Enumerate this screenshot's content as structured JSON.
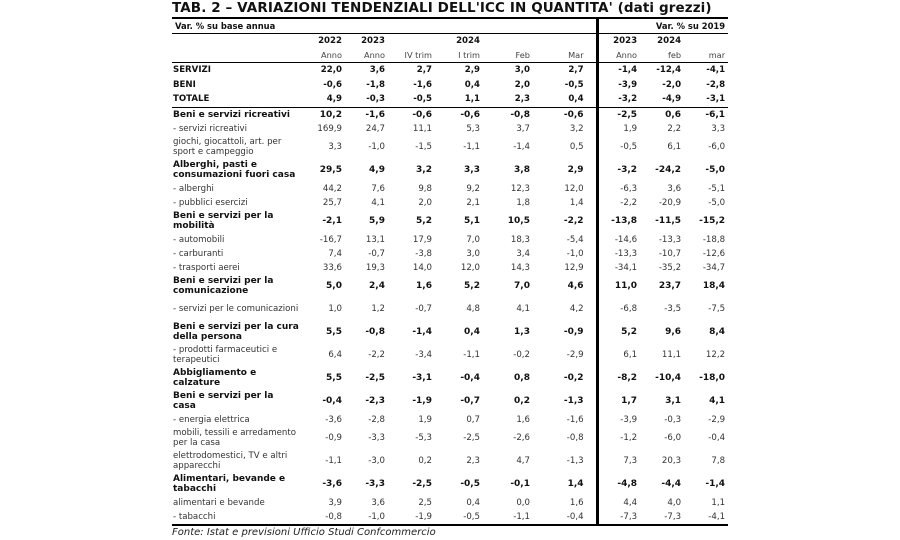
{
  "title": "TAB. 2 – VARIAZIONI TENDENZIALI DELL'ICC IN QUANTITA' (dati grezzi)",
  "header": {
    "left_group": "Var. % su base annua",
    "right_group": "Var. % su 2019",
    "years": [
      "2022",
      "2023",
      "",
      "2024",
      "",
      "",
      "2023",
      "2024",
      ""
    ],
    "periods": [
      "Anno",
      "Anno",
      "IV trim",
      "I trim",
      "Feb",
      "Mar",
      "Anno",
      "feb",
      "mar"
    ]
  },
  "rows": [
    {
      "label": "SERVIZI",
      "style": "top",
      "values": [
        "22,0",
        "3,6",
        "2,7",
        "2,9",
        "3,0",
        "2,7",
        "-1,4",
        "-12,4",
        "-4,1"
      ]
    },
    {
      "label": "BENI",
      "style": "top",
      "values": [
        "-0,6",
        "-1,8",
        "-1,6",
        "0,4",
        "2,0",
        "-0,5",
        "-3,9",
        "-2,0",
        "-2,8"
      ]
    },
    {
      "label": "TOTALE",
      "style": "top last",
      "values": [
        "4,9",
        "-0,3",
        "-0,5",
        "1,1",
        "2,3",
        "0,4",
        "-3,2",
        "-4,9",
        "-3,1"
      ]
    },
    {
      "label": "Beni e servizi ricreativi",
      "style": "s b",
      "values": [
        "10,2",
        "-1,6",
        "-0,6",
        "-0,6",
        "-0,8",
        "-0,6",
        "-2,5",
        "0,6",
        "-6,1"
      ]
    },
    {
      "label": "- servizi ricreativi",
      "style": "s sub",
      "values": [
        "169,9",
        "24,7",
        "11,1",
        "5,3",
        "3,7",
        "3,2",
        "1,9",
        "2,2",
        "3,3"
      ]
    },
    {
      "label": "  giochi, giocattoli, art. per sport e campeggio",
      "style": "d sub",
      "values": [
        "3,3",
        "-1,0",
        "-1,5",
        "-1,1",
        "-1,4",
        "0,5",
        "-0,5",
        "6,1",
        "-6,0"
      ]
    },
    {
      "label": "Alberghi, pasti e consumazioni fuori casa",
      "style": "d b",
      "values": [
        "29,5",
        "4,9",
        "3,2",
        "3,3",
        "3,8",
        "2,9",
        "-3,2",
        "-24,2",
        "-5,0"
      ]
    },
    {
      "label": "- alberghi",
      "style": "s sub",
      "values": [
        "44,2",
        "7,6",
        "9,8",
        "9,2",
        "12,3",
        "12,0",
        "-6,3",
        "3,6",
        "-5,1"
      ]
    },
    {
      "label": "- pubblici esercizi",
      "style": "s sub",
      "values": [
        "25,7",
        "4,1",
        "2,0",
        "2,1",
        "1,8",
        "1,4",
        "-2,2",
        "-20,9",
        "-5,0"
      ]
    },
    {
      "label": "Beni e servizi per la mobilità",
      "style": "d b",
      "values": [
        "-2,1",
        "5,9",
        "5,2",
        "5,1",
        "10,5",
        "-2,2",
        "-13,8",
        "-11,5",
        "-15,2"
      ]
    },
    {
      "label": "- automobili",
      "style": "s sub",
      "values": [
        "-16,7",
        "13,1",
        "17,9",
        "7,0",
        "18,3",
        "-5,4",
        "-14,6",
        "-13,3",
        "-18,8"
      ]
    },
    {
      "label": "- carburanti",
      "style": "s sub",
      "values": [
        "7,4",
        "-0,7",
        "-3,8",
        "3,0",
        "3,4",
        "-1,0",
        "-13,3",
        "-10,7",
        "-12,6"
      ]
    },
    {
      "label": "- trasporti aerei",
      "style": "s sub",
      "values": [
        "33,6",
        "19,3",
        "14,0",
        "12,0",
        "14,3",
        "12,9",
        "-34,1",
        "-35,2",
        "-34,7"
      ]
    },
    {
      "label": "Beni e servizi per la comunicazione",
      "style": "d b",
      "values": [
        "5,0",
        "2,4",
        "1,6",
        "5,2",
        "7,0",
        "4,6",
        "11,0",
        "23,7",
        "18,4"
      ]
    },
    {
      "label": "- servizi per le comunicazioni",
      "style": "d sub",
      "values": [
        "1,0",
        "1,2",
        "-0,7",
        "4,8",
        "4,1",
        "4,2",
        "-6,8",
        "-3,5",
        "-7,5"
      ]
    },
    {
      "label": "Beni e servizi per la cura della persona",
      "style": "d b",
      "values": [
        "5,5",
        "-0,8",
        "-1,4",
        "0,4",
        "1,3",
        "-0,9",
        "5,2",
        "9,6",
        "8,4"
      ]
    },
    {
      "label": "- prodotti farmaceutici e terapeutici",
      "style": "d sub",
      "values": [
        "6,4",
        "-2,2",
        "-3,4",
        "-1,1",
        "-0,2",
        "-2,9",
        "6,1",
        "11,1",
        "12,2"
      ]
    },
    {
      "label": "Abbigliamento e calzature",
      "style": "d b",
      "values": [
        "5,5",
        "-2,5",
        "-3,1",
        "-0,4",
        "0,8",
        "-0,2",
        "-8,2",
        "-10,4",
        "-18,0"
      ]
    },
    {
      "label": "Beni e servizi per la casa",
      "style": "d b",
      "values": [
        "-0,4",
        "-2,3",
        "-1,9",
        "-0,7",
        "0,2",
        "-1,3",
        "1,7",
        "3,1",
        "4,1"
      ]
    },
    {
      "label": "- energia elettrica",
      "style": "s sub",
      "values": [
        "-3,6",
        "-2,8",
        "1,9",
        "0,7",
        "1,6",
        "-1,6",
        "-3,9",
        "-0,3",
        "-2,9"
      ]
    },
    {
      "label": "  mobili, tessili e arredamento per la casa",
      "style": "d sub",
      "values": [
        "-0,9",
        "-3,3",
        "-5,3",
        "-2,5",
        "-2,6",
        "-0,8",
        "-1,2",
        "-6,0",
        "-0,4"
      ]
    },
    {
      "label": "  elettrodomestici, TV e altri apparecchi",
      "style": "d sub",
      "values": [
        "-1,1",
        "-3,0",
        "0,2",
        "2,3",
        "4,7",
        "-1,3",
        "7,3",
        "20,3",
        "7,8"
      ]
    },
    {
      "label": "Alimentari, bevande e tabacchi",
      "style": "d b",
      "values": [
        "-3,6",
        "-3,3",
        "-2,5",
        "-0,5",
        "-0,1",
        "1,4",
        "-4,8",
        "-4,4",
        "-1,4"
      ]
    },
    {
      "label": "  alimentari e bevande",
      "style": "s sub",
      "values": [
        "3,9",
        "3,6",
        "2,5",
        "0,4",
        "0,0",
        "1,6",
        "4,4",
        "4,0",
        "1,1"
      ]
    },
    {
      "label": "- tabacchi",
      "style": "s sub end",
      "values": [
        "-0,8",
        "-1,0",
        "-1,9",
        "-0,5",
        "-1,1",
        "-0,4",
        "-7,3",
        "-7,3",
        "-4,1"
      ]
    }
  ],
  "source": "Fonte: Istat e previsioni Ufficio Studi Confcommercio"
}
